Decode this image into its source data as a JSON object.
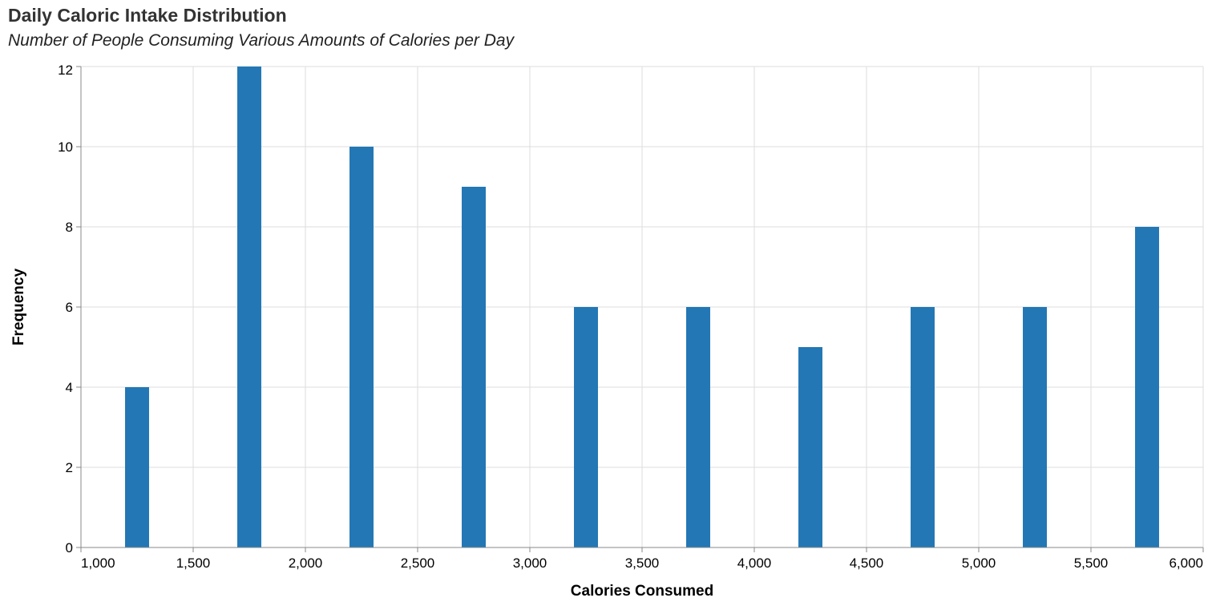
{
  "title": "Daily Caloric Intake Distribution",
  "subtitle": "Number of People Consuming Various Amounts of Calories per Day",
  "colors": {
    "bar": "#2277b4",
    "grid": "#dddddd",
    "axis": "#888888"
  },
  "chart_data": {
    "type": "bar",
    "title": "Daily Caloric Intake Distribution",
    "subtitle": "Number of People Consuming Various Amounts of Calories per Day",
    "xlabel": "Calories Consumed",
    "ylabel": "Frequency",
    "xlim": [
      1000,
      6000
    ],
    "ylim": [
      0,
      12
    ],
    "x_ticks": [
      "1,000",
      "1,500",
      "2,000",
      "2,500",
      "3,000",
      "3,500",
      "4,000",
      "4,500",
      "5,000",
      "5,500",
      "6,000"
    ],
    "x_tick_values": [
      1000,
      1500,
      2000,
      2500,
      3000,
      3500,
      4000,
      4500,
      5000,
      5500,
      6000
    ],
    "y_ticks": [
      "0",
      "2",
      "4",
      "6",
      "8",
      "10",
      "12"
    ],
    "y_tick_values": [
      0,
      2,
      4,
      6,
      8,
      10,
      12
    ],
    "grid": true,
    "bins": [
      {
        "x": 1250,
        "value": 4
      },
      {
        "x": 1750,
        "value": 12
      },
      {
        "x": 2250,
        "value": 10
      },
      {
        "x": 2750,
        "value": 9
      },
      {
        "x": 3250,
        "value": 6
      },
      {
        "x": 3750,
        "value": 6
      },
      {
        "x": 4250,
        "value": 5
      },
      {
        "x": 4750,
        "value": 6
      },
      {
        "x": 5250,
        "value": 6
      },
      {
        "x": 5750,
        "value": 8
      }
    ],
    "bar_width_data_units": 107
  }
}
